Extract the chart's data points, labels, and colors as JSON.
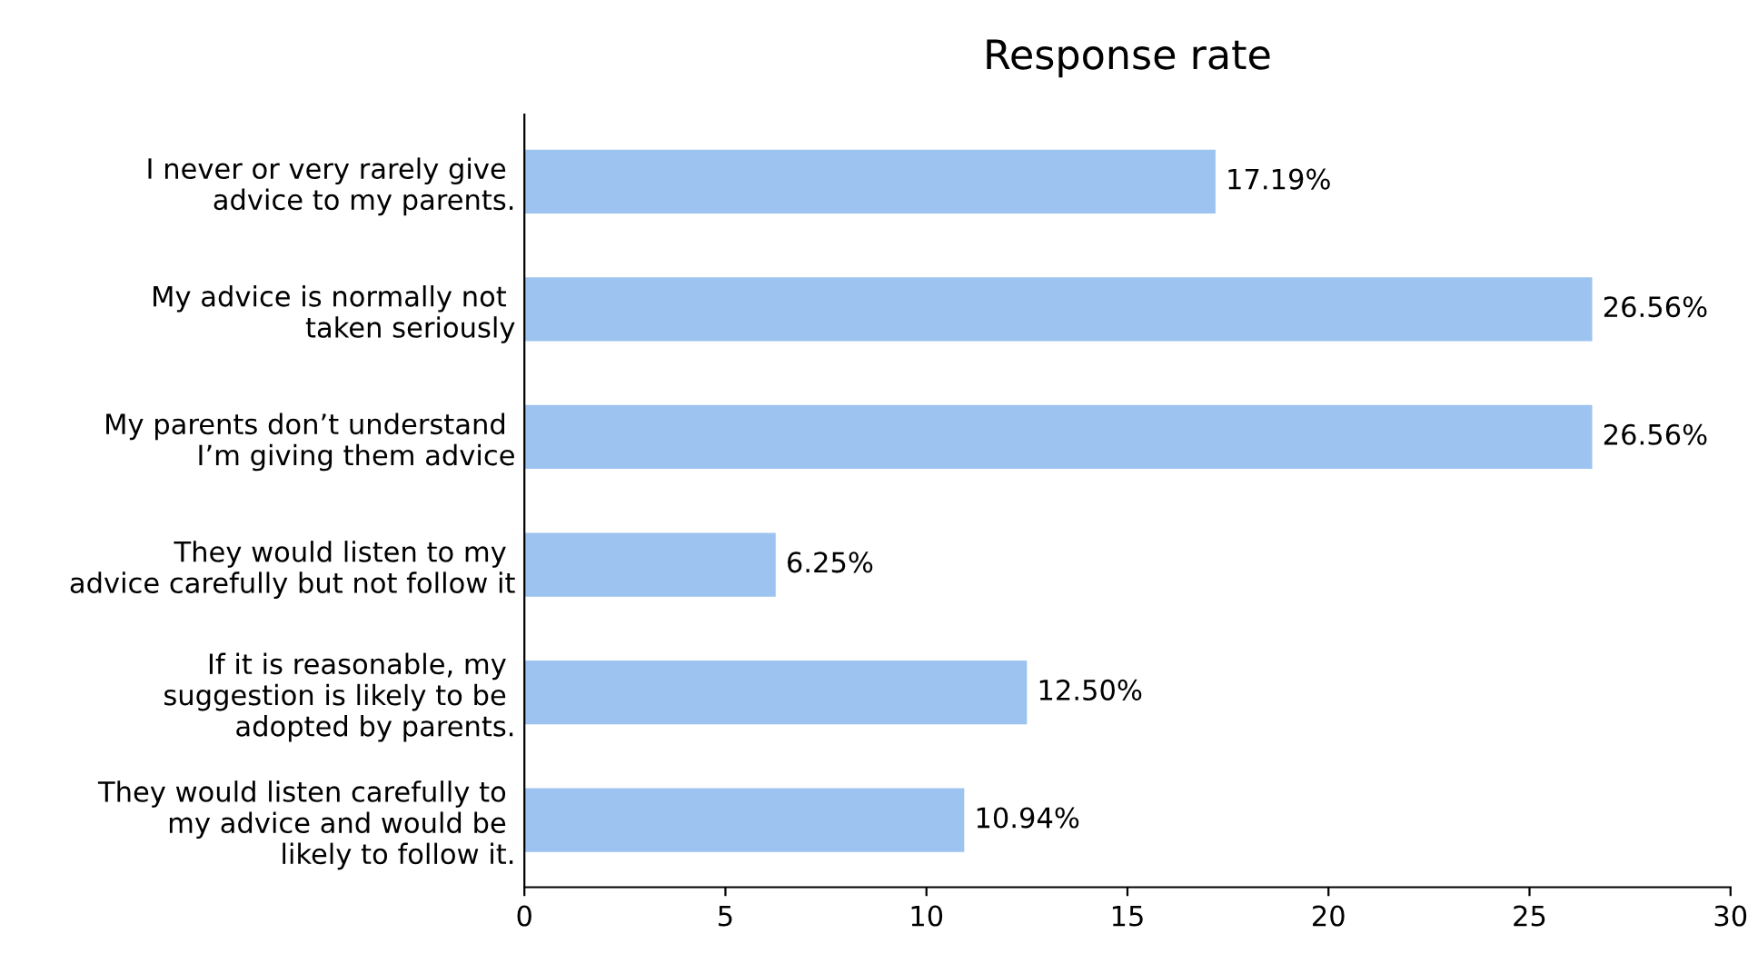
{
  "chart_data": {
    "type": "bar",
    "orientation": "horizontal",
    "title": "Response rate",
    "categories": [
      "I never or very rarely give \nadvice to my parents.",
      "My advice is normally not \ntaken seriously",
      "My parents don’t understand \nI’m giving them advice",
      "They would listen to my \nadvice carefully but not follow it",
      "If it is reasonable, my \nsuggestion is likely to be \nadopted by parents.",
      "They would listen carefully to \nmy advice and would be \nlikely to follow it."
    ],
    "values": [
      17.19,
      26.56,
      26.56,
      6.25,
      12.5,
      10.94
    ],
    "value_labels": [
      "17.19%",
      "26.56%",
      "26.56%",
      "6.25%",
      "12.50%",
      "10.94%"
    ],
    "color": "#9dc3f0",
    "xlim": [
      0,
      30
    ],
    "xticks": [
      0,
      5,
      10,
      15,
      20,
      25,
      30
    ],
    "grid": false,
    "legend": false
  }
}
